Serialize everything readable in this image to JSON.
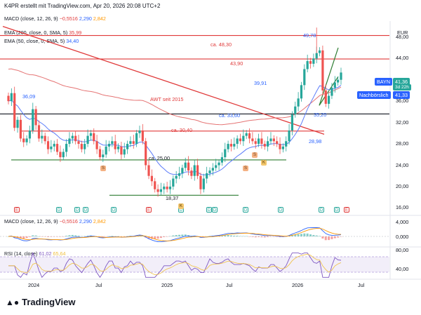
{
  "header": {
    "text": "K4PR erstellt mit TradingView.com, Apr 20, 2026 20:08 UTC+2"
  },
  "legends": {
    "macd_top": {
      "name": "MACD (close, 12, 26, 9)",
      "v1": "−0,5516",
      "v2": "2,290",
      "v3": "2,842"
    },
    "ema200": {
      "name": "EMA (200, close, 0, SMA, 5)",
      "value": "35,99"
    },
    "ema50": {
      "name": "EMA (50, close, 0, SMA, 5)",
      "value": "34,40"
    },
    "macd_pane": {
      "name": "MACD (close, 12, 26, 9)",
      "v1": "−0,5516",
      "v2": "2,290",
      "v3": "2,842"
    },
    "rsi_pane": {
      "name": "RSI (14, close)",
      "v1": "61,02",
      "v2": "65,64"
    }
  },
  "currency": "EUR",
  "price_ticks": [
    "48,00",
    "44,00",
    "40,00",
    "36,00",
    "32,00",
    "28,00",
    "24,00",
    "20,00",
    "16,00"
  ],
  "macd_ticks": [
    "4,000",
    "0,000"
  ],
  "rsi_ticks": [
    "80,00",
    "40,00"
  ],
  "x_labels": [
    "2024",
    "Jul",
    "2025",
    "Jul",
    "2026",
    "Jul"
  ],
  "annotations": {
    "l4830": "ca. 48,30",
    "l4390": "43,90",
    "l3991": "39,91",
    "awt": "AWT seit 2015",
    "l3360": "ca. 33,60",
    "l3040": "ca. 30,40",
    "l2898": "28,98",
    "l2500": "ca. 25,00",
    "l1837": "18,37",
    "l3609": "36,09",
    "l4978": "49,78",
    "l3520": "35,20"
  },
  "ticker": {
    "symbol": "BAYN",
    "price": "41,36",
    "countdown": "3d 22h",
    "next_label": "Nachbörslich",
    "next_price": "41,33"
  },
  "events": {
    "e": "E",
    "d": "D",
    "s": "S",
    "k": "K"
  },
  "logo_text": "TradingView",
  "chart_data": {
    "type": "candlestick",
    "symbol": "BAYN",
    "currency": "EUR",
    "ylim": [
      15,
      51
    ],
    "weekly_close": [
      36.0,
      37.5,
      31.0,
      32.5,
      29.0,
      28.3,
      29.0,
      30.5,
      34.5,
      31.5,
      29.0,
      29.5,
      28.5,
      27.0,
      27.5,
      28.0,
      26.5,
      25.5,
      26.5,
      28.0,
      29.0,
      29.5,
      28.5,
      28.0,
      27.0,
      28.0,
      29.5,
      30.0,
      28.5,
      27.0,
      25.5,
      26.0,
      27.5,
      28.0,
      28.5,
      27.0,
      27.5,
      26.0,
      27.0,
      28.0,
      28.5,
      28.0,
      30.0,
      30.5,
      28.5,
      24.0,
      22.0,
      21.0,
      19.5,
      19.0,
      19.5,
      20.0,
      19.5,
      20.0,
      21.5,
      22.0,
      22.5,
      23.5,
      24.5,
      23.0,
      22.0,
      24.0,
      22.0,
      19.5,
      21.5,
      22.5,
      23.0,
      23.5,
      24.0,
      24.5,
      25.5,
      27.0,
      28.0,
      27.5,
      28.0,
      29.0,
      28.5,
      29.5,
      30.0,
      29.0,
      28.5,
      28.0,
      29.0,
      28.0,
      27.5,
      28.5,
      29.0,
      28.5,
      28.0,
      27.0,
      27.5,
      28.5,
      30.5,
      33.5,
      35.0,
      36.5,
      39.0,
      42.0,
      43.5,
      43.0,
      44.0,
      45.0,
      45.5,
      38.0,
      35.5,
      37.0,
      38.5,
      39.5,
      40.0,
      41.36
    ],
    "horizontal_levels": [
      48.3,
      43.9,
      33.6,
      30.4,
      25.0,
      18.37
    ],
    "ema200_value": 35.99,
    "ema50_value": 34.4,
    "last_price": 41.36,
    "after_hours_price": 41.33,
    "annotated_high": 49.78,
    "annotated_low": 35.2,
    "macd": {
      "macd": 2.29,
      "signal": 2.842,
      "histogram": -0.5516
    },
    "rsi": {
      "rsi": 61.02,
      "ma": 65.64
    }
  }
}
